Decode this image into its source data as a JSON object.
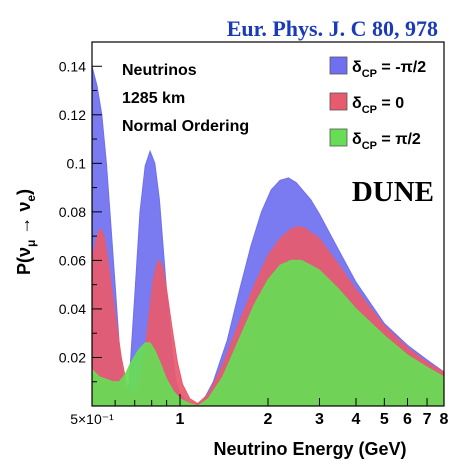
{
  "reference": "Eur. Phys. J. C 80, 978",
  "chart_data": {
    "type": "area",
    "title": "",
    "xlabel": "Neutrino Energy (GeV)",
    "ylabel": "P(ν_μ → ν_e)",
    "ylabel_parts": {
      "base": "P(ν",
      "sub1": "μ",
      "arrow": " → ν",
      "sub2": "e",
      "close": ")"
    },
    "x_scale": "log",
    "xlim": [
      0.5,
      8
    ],
    "ylim": [
      0,
      0.15
    ],
    "x_ticks": [
      {
        "value": 0.5,
        "label": "5×10⁻¹"
      },
      {
        "value": 1,
        "label": "1"
      },
      {
        "value": 2,
        "label": "2"
      },
      {
        "value": 3,
        "label": "3"
      },
      {
        "value": 4,
        "label": "4"
      },
      {
        "value": 5,
        "label": "5"
      },
      {
        "value": 6,
        "label": "6"
      },
      {
        "value": 7,
        "label": "7"
      },
      {
        "value": 8,
        "label": "8"
      }
    ],
    "y_ticks": [
      {
        "value": 0.02,
        "label": "0.02"
      },
      {
        "value": 0.04,
        "label": "0.04"
      },
      {
        "value": 0.06,
        "label": "0.06"
      },
      {
        "value": 0.08,
        "label": "0.08"
      },
      {
        "value": 0.1,
        "label": "0.1"
      },
      {
        "value": 0.12,
        "label": "0.12"
      },
      {
        "value": 0.14,
        "label": "0.14"
      }
    ],
    "annotations": [
      "Neutrinos",
      "1285 km",
      "Normal Ordering"
    ],
    "experiment_label": "DUNE",
    "legend_position": "top-right",
    "series": [
      {
        "name": "δCP = -π/2",
        "legend": {
          "main": "δ",
          "sub": "CP",
          "rest": " = -π/2"
        },
        "color": "#6f6ff0",
        "points": [
          [
            0.5,
            0.14
          ],
          [
            0.52,
            0.132
          ],
          [
            0.54,
            0.12
          ],
          [
            0.56,
            0.1
          ],
          [
            0.58,
            0.075
          ],
          [
            0.6,
            0.05
          ],
          [
            0.62,
            0.025
          ],
          [
            0.64,
            0.01
          ],
          [
            0.655,
            0.004
          ],
          [
            0.67,
            0.01
          ],
          [
            0.7,
            0.045
          ],
          [
            0.73,
            0.08
          ],
          [
            0.76,
            0.099
          ],
          [
            0.79,
            0.105
          ],
          [
            0.82,
            0.1
          ],
          [
            0.85,
            0.085
          ],
          [
            0.88,
            0.062
          ],
          [
            0.91,
            0.04
          ],
          [
            0.94,
            0.022
          ],
          [
            0.97,
            0.01
          ],
          [
            1.0,
            0.005
          ],
          [
            1.05,
            0.002
          ],
          [
            1.12,
            0.0
          ],
          [
            1.2,
            0.002
          ],
          [
            1.3,
            0.01
          ],
          [
            1.45,
            0.027
          ],
          [
            1.6,
            0.048
          ],
          [
            1.75,
            0.066
          ],
          [
            1.9,
            0.08
          ],
          [
            2.05,
            0.089
          ],
          [
            2.2,
            0.093
          ],
          [
            2.35,
            0.094
          ],
          [
            2.5,
            0.092
          ],
          [
            2.8,
            0.085
          ],
          [
            3.0,
            0.079
          ],
          [
            3.5,
            0.064
          ],
          [
            4.0,
            0.051
          ],
          [
            5.0,
            0.034
          ],
          [
            6.0,
            0.025
          ],
          [
            7.0,
            0.019
          ],
          [
            8.0,
            0.014
          ]
        ]
      },
      {
        "name": "δCP = 0",
        "legend": {
          "main": "δ",
          "sub": "CP",
          "rest": " = 0"
        },
        "color": "#e85a6e",
        "points": [
          [
            0.5,
            0.06
          ],
          [
            0.52,
            0.07
          ],
          [
            0.535,
            0.073
          ],
          [
            0.55,
            0.07
          ],
          [
            0.57,
            0.058
          ],
          [
            0.6,
            0.038
          ],
          [
            0.63,
            0.02
          ],
          [
            0.66,
            0.008
          ],
          [
            0.69,
            0.004
          ],
          [
            0.72,
            0.008
          ],
          [
            0.75,
            0.018
          ],
          [
            0.78,
            0.035
          ],
          [
            0.81,
            0.052
          ],
          [
            0.84,
            0.06
          ],
          [
            0.87,
            0.058
          ],
          [
            0.9,
            0.048
          ],
          [
            0.94,
            0.032
          ],
          [
            0.98,
            0.018
          ],
          [
            1.02,
            0.009
          ],
          [
            1.08,
            0.003
          ],
          [
            1.15,
            0.001
          ],
          [
            1.25,
            0.005
          ],
          [
            1.4,
            0.017
          ],
          [
            1.6,
            0.035
          ],
          [
            1.8,
            0.05
          ],
          [
            2.0,
            0.062
          ],
          [
            2.2,
            0.069
          ],
          [
            2.4,
            0.073
          ],
          [
            2.55,
            0.074
          ],
          [
            2.7,
            0.073
          ],
          [
            3.0,
            0.069
          ],
          [
            3.5,
            0.058
          ],
          [
            4.0,
            0.048
          ],
          [
            5.0,
            0.033
          ],
          [
            6.0,
            0.024
          ],
          [
            7.0,
            0.018
          ],
          [
            8.0,
            0.014
          ]
        ]
      },
      {
        "name": "δCP = π/2",
        "legend": {
          "main": "δ",
          "sub": "CP",
          "rest": " = π/2"
        },
        "color": "#66dd55",
        "points": [
          [
            0.5,
            0.015
          ],
          [
            0.53,
            0.012
          ],
          [
            0.56,
            0.011
          ],
          [
            0.59,
            0.01
          ],
          [
            0.62,
            0.01
          ],
          [
            0.65,
            0.013
          ],
          [
            0.68,
            0.018
          ],
          [
            0.72,
            0.023
          ],
          [
            0.76,
            0.026
          ],
          [
            0.79,
            0.026
          ],
          [
            0.82,
            0.023
          ],
          [
            0.86,
            0.017
          ],
          [
            0.9,
            0.011
          ],
          [
            0.95,
            0.006
          ],
          [
            1.0,
            0.003
          ],
          [
            1.08,
            0.001
          ],
          [
            1.15,
            0.0
          ],
          [
            1.25,
            0.003
          ],
          [
            1.4,
            0.012
          ],
          [
            1.6,
            0.028
          ],
          [
            1.8,
            0.042
          ],
          [
            2.0,
            0.052
          ],
          [
            2.2,
            0.058
          ],
          [
            2.4,
            0.06
          ],
          [
            2.6,
            0.06
          ],
          [
            2.8,
            0.058
          ],
          [
            3.0,
            0.056
          ],
          [
            3.5,
            0.048
          ],
          [
            4.0,
            0.04
          ],
          [
            5.0,
            0.029
          ],
          [
            6.0,
            0.021
          ],
          [
            7.0,
            0.016
          ],
          [
            8.0,
            0.012
          ]
        ]
      }
    ]
  }
}
